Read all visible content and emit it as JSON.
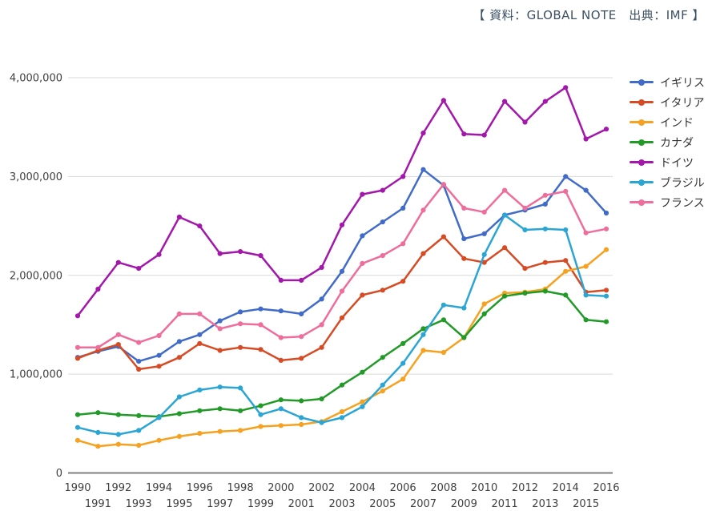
{
  "header": {
    "source_label": "【 資料：GLOBAL NOTE　出典：IMF 】"
  },
  "chart_data": {
    "type": "line",
    "title": "",
    "xlabel": "",
    "ylabel": "",
    "x": [
      1990,
      1991,
      1992,
      1993,
      1994,
      1995,
      1996,
      1997,
      1998,
      1999,
      2000,
      2001,
      2002,
      2003,
      2004,
      2005,
      2006,
      2007,
      2008,
      2009,
      2010,
      2011,
      2012,
      2013,
      2014,
      2015,
      2016
    ],
    "y_ticks": [
      0,
      1000000,
      2000000,
      3000000,
      4000000
    ],
    "y_tick_labels": [
      "0",
      "1,000,000",
      "2,000,000",
      "3,000,000",
      "4,000,000"
    ],
    "ylim": [
      0,
      4000000
    ],
    "grid": "horizontal",
    "legend_position": "right",
    "series": [
      {
        "key": "uk",
        "name": "イギリス",
        "color": "#416bc8",
        "values": [
          1170000,
          1230000,
          1280000,
          1130000,
          1190000,
          1330000,
          1400000,
          1540000,
          1630000,
          1660000,
          1640000,
          1610000,
          1760000,
          2040000,
          2400000,
          2540000,
          2680000,
          3070000,
          2910000,
          2370000,
          2420000,
          2610000,
          2660000,
          2720000,
          3000000,
          2860000,
          2630000
        ]
      },
      {
        "key": "italy",
        "name": "イタリア",
        "color": "#d74b24",
        "values": [
          1160000,
          1240000,
          1300000,
          1050000,
          1080000,
          1170000,
          1310000,
          1240000,
          1270000,
          1250000,
          1140000,
          1160000,
          1270000,
          1570000,
          1800000,
          1850000,
          1940000,
          2220000,
          2390000,
          2170000,
          2130000,
          2280000,
          2070000,
          2130000,
          2150000,
          1830000,
          1850000
        ]
      },
      {
        "key": "india",
        "name": "インド",
        "color": "#f6a11f",
        "values": [
          330000,
          270000,
          290000,
          280000,
          330000,
          370000,
          400000,
          420000,
          430000,
          470000,
          480000,
          490000,
          520000,
          620000,
          720000,
          830000,
          950000,
          1240000,
          1220000,
          1370000,
          1710000,
          1820000,
          1830000,
          1860000,
          2040000,
          2090000,
          2260000
        ]
      },
      {
        "key": "canada",
        "name": "カナダ",
        "color": "#219a27",
        "values": [
          590000,
          610000,
          590000,
          580000,
          570000,
          600000,
          630000,
          650000,
          630000,
          680000,
          740000,
          730000,
          750000,
          890000,
          1020000,
          1170000,
          1310000,
          1460000,
          1550000,
          1370000,
          1610000,
          1790000,
          1820000,
          1840000,
          1800000,
          1550000,
          1530000
        ]
      },
      {
        "key": "germany",
        "name": "ドイツ",
        "color": "#a317ab",
        "values": [
          1590000,
          1860000,
          2130000,
          2070000,
          2210000,
          2590000,
          2500000,
          2220000,
          2240000,
          2200000,
          1950000,
          1950000,
          2080000,
          2510000,
          2820000,
          2860000,
          3000000,
          3440000,
          3770000,
          3430000,
          3420000,
          3760000,
          3550000,
          3760000,
          3900000,
          3380000,
          3480000
        ]
      },
      {
        "key": "brazil",
        "name": "ブラジル",
        "color": "#2ba6d4",
        "values": [
          460000,
          410000,
          390000,
          430000,
          560000,
          770000,
          840000,
          870000,
          860000,
          590000,
          650000,
          560000,
          510000,
          560000,
          670000,
          890000,
          1110000,
          1400000,
          1700000,
          1670000,
          2210000,
          2610000,
          2460000,
          2470000,
          2460000,
          1800000,
          1790000
        ]
      },
      {
        "key": "france",
        "name": "フランス",
        "color": "#ef6d9b",
        "values": [
          1270000,
          1270000,
          1400000,
          1320000,
          1390000,
          1610000,
          1610000,
          1460000,
          1510000,
          1500000,
          1370000,
          1380000,
          1500000,
          1840000,
          2120000,
          2200000,
          2320000,
          2660000,
          2920000,
          2680000,
          2640000,
          2860000,
          2680000,
          2810000,
          2850000,
          2430000,
          2470000
        ]
      }
    ]
  }
}
